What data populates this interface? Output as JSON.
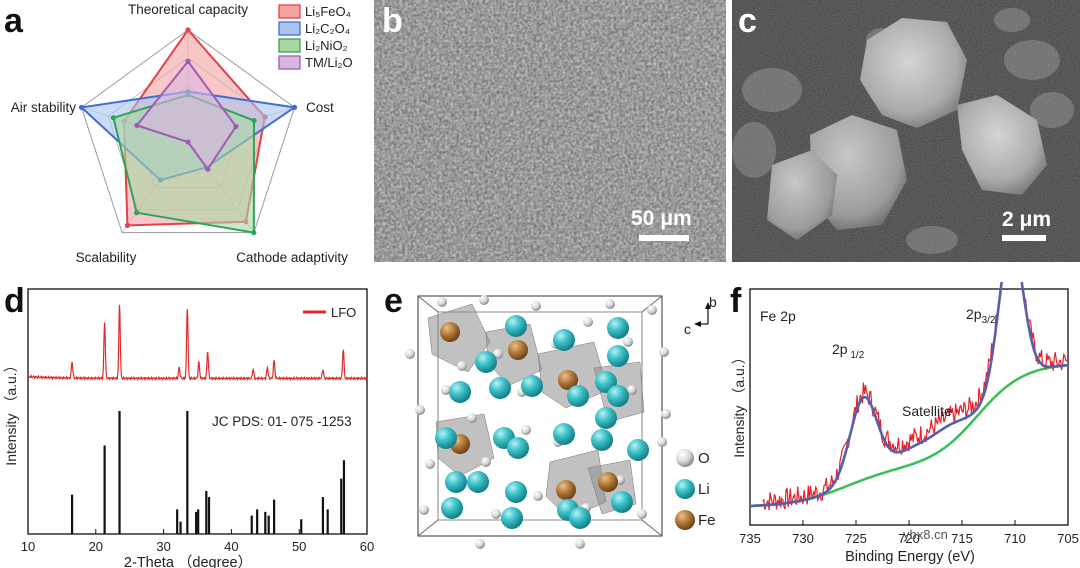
{
  "panels": {
    "a": "a",
    "b": "b",
    "c": "c",
    "d": "d",
    "e": "e",
    "f": "f"
  },
  "radar": {
    "axes": [
      "Theoretical capacity",
      "Cost",
      "Cathode adaptivity",
      "Scalability",
      "Air stability"
    ],
    "legend": [
      "Li₅FeO₄",
      "Li₂C₂O₄",
      "Li₂NiO₂",
      "TM/Li₂O"
    ],
    "colors": [
      "#e8404a",
      "#3c6fd6",
      "#2fa35a",
      "#a05bb5"
    ],
    "fills": [
      "#f4a3a3",
      "#a9c3ee",
      "#a8d7a4",
      "#d8b6e0"
    ],
    "levels": 4,
    "series": [
      {
        "name": "Li₅FeO₄",
        "values": [
          1.0,
          0.72,
          0.88,
          0.92,
          0.6
        ]
      },
      {
        "name": "Li₂C₂O₄",
        "values": [
          0.45,
          1.0,
          0.28,
          0.42,
          1.0
        ]
      },
      {
        "name": "Li₂NiO₂",
        "values": [
          0.42,
          0.62,
          1.0,
          0.78,
          0.7
        ]
      },
      {
        "name": "TM/Li₂O",
        "values": [
          0.72,
          0.45,
          0.3,
          0.0,
          0.48
        ]
      }
    ]
  },
  "sem_b": {
    "scale": "50 μm"
  },
  "sem_c": {
    "scale": "2 μm"
  },
  "xrd": {
    "type": "line",
    "legend": "LFO",
    "ref_label": "JC PDS: 01- 075 -1253",
    "xlabel": "2-Theta  （degree）",
    "ylabel": "Intensity  （a.u.）",
    "xlim": [
      10,
      60
    ],
    "xticks": [
      "10",
      "20",
      "30",
      "40",
      "50",
      "60"
    ],
    "peaks": [
      {
        "x": 16.5,
        "h": 0.18
      },
      {
        "x": 21.3,
        "h": 0.62
      },
      {
        "x": 23.5,
        "h": 0.82
      },
      {
        "x": 32.3,
        "h": 0.12
      },
      {
        "x": 33.5,
        "h": 0.78
      },
      {
        "x": 35.2,
        "h": 0.18
      },
      {
        "x": 36.5,
        "h": 0.3
      },
      {
        "x": 43.2,
        "h": 0.1
      },
      {
        "x": 45.3,
        "h": 0.12
      },
      {
        "x": 46.3,
        "h": 0.2
      },
      {
        "x": 53.5,
        "h": 0.1
      },
      {
        "x": 56.5,
        "h": 0.33
      }
    ],
    "ref_lines": [
      {
        "x": 16.5,
        "h": 0.32
      },
      {
        "x": 21.3,
        "h": 0.72
      },
      {
        "x": 23.5,
        "h": 1.0
      },
      {
        "x": 32.0,
        "h": 0.2
      },
      {
        "x": 32.5,
        "h": 0.1
      },
      {
        "x": 33.5,
        "h": 1.0
      },
      {
        "x": 34.8,
        "h": 0.18
      },
      {
        "x": 35.1,
        "h": 0.2
      },
      {
        "x": 36.3,
        "h": 0.35
      },
      {
        "x": 36.7,
        "h": 0.3
      },
      {
        "x": 43.0,
        "h": 0.15
      },
      {
        "x": 43.8,
        "h": 0.2
      },
      {
        "x": 45.0,
        "h": 0.18
      },
      {
        "x": 45.5,
        "h": 0.15
      },
      {
        "x": 46.3,
        "h": 0.28
      },
      {
        "x": 50.3,
        "h": 0.12
      },
      {
        "x": 53.5,
        "h": 0.3
      },
      {
        "x": 54.2,
        "h": 0.2
      },
      {
        "x": 56.2,
        "h": 0.45
      },
      {
        "x": 56.6,
        "h": 0.6
      }
    ]
  },
  "crystal": {
    "legend": [
      "O",
      "Li",
      "Fe"
    ],
    "axis_b": "b",
    "axis_c": "c"
  },
  "xps": {
    "type": "line",
    "title": "Fe 2p",
    "peak1": "2p",
    "peak1_sub": "1/2",
    "peak2": "2p",
    "peak2_sub": "3/2",
    "satellite": "Satellite",
    "xlabel": "Binding Energy  (eV)",
    "ylabel": "Intensity  （a.u.）",
    "xlim": [
      735,
      705
    ],
    "xticks": [
      "735",
      "730",
      "725",
      "720",
      "715",
      "710",
      "705"
    ],
    "peaks": [
      {
        "center": 724.3,
        "height": 0.55,
        "width": 1.8
      },
      {
        "center": 710.4,
        "height": 1.0,
        "width": 1.6
      },
      {
        "center": 719.0,
        "height": 0.12,
        "width": 4.0
      },
      {
        "center": 716.0,
        "height": 0.06,
        "width": 2.0
      }
    ]
  },
  "watermark": "ybx8.cn"
}
